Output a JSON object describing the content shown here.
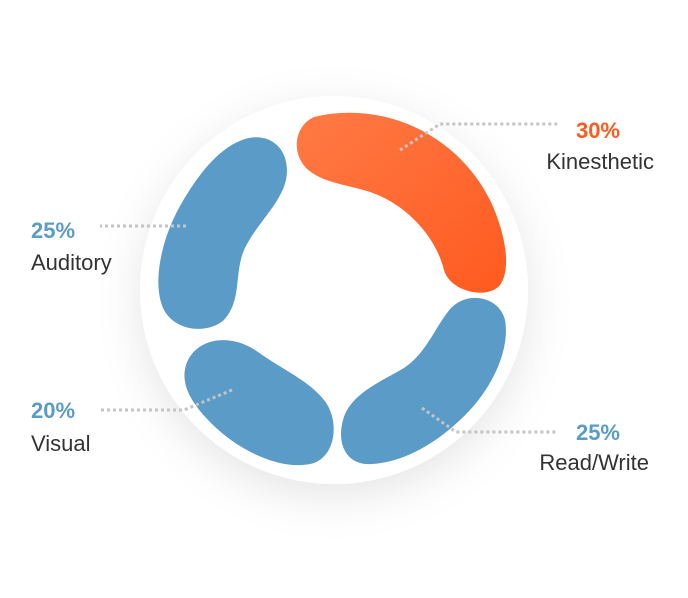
{
  "chart_data": {
    "type": "pie",
    "style": "rounded-segment-ring",
    "slices": [
      {
        "label": "Kinesthetic",
        "value": 30,
        "display": "30%",
        "color": "#ff5a1f",
        "highlight": true,
        "label_side": "right"
      },
      {
        "label": "Read/Write",
        "value": 25,
        "display": "25%",
        "color": "#5b9bc8",
        "highlight": false,
        "label_side": "right"
      },
      {
        "label": "Visual",
        "value": 20,
        "display": "20%",
        "color": "#5b9bc8",
        "highlight": false,
        "label_side": "left"
      },
      {
        "label": "Auditory",
        "value": 25,
        "display": "25%",
        "color": "#5b9bc8",
        "highlight": false,
        "label_side": "left"
      }
    ],
    "colors": {
      "accent": "#ff5a1f",
      "accent_light": "#ff7a45",
      "base": "#5b9bc8",
      "label_text": "#333333",
      "leader_line": "#c4c4c4",
      "backdrop": "#ffffff"
    },
    "legend": "none"
  }
}
